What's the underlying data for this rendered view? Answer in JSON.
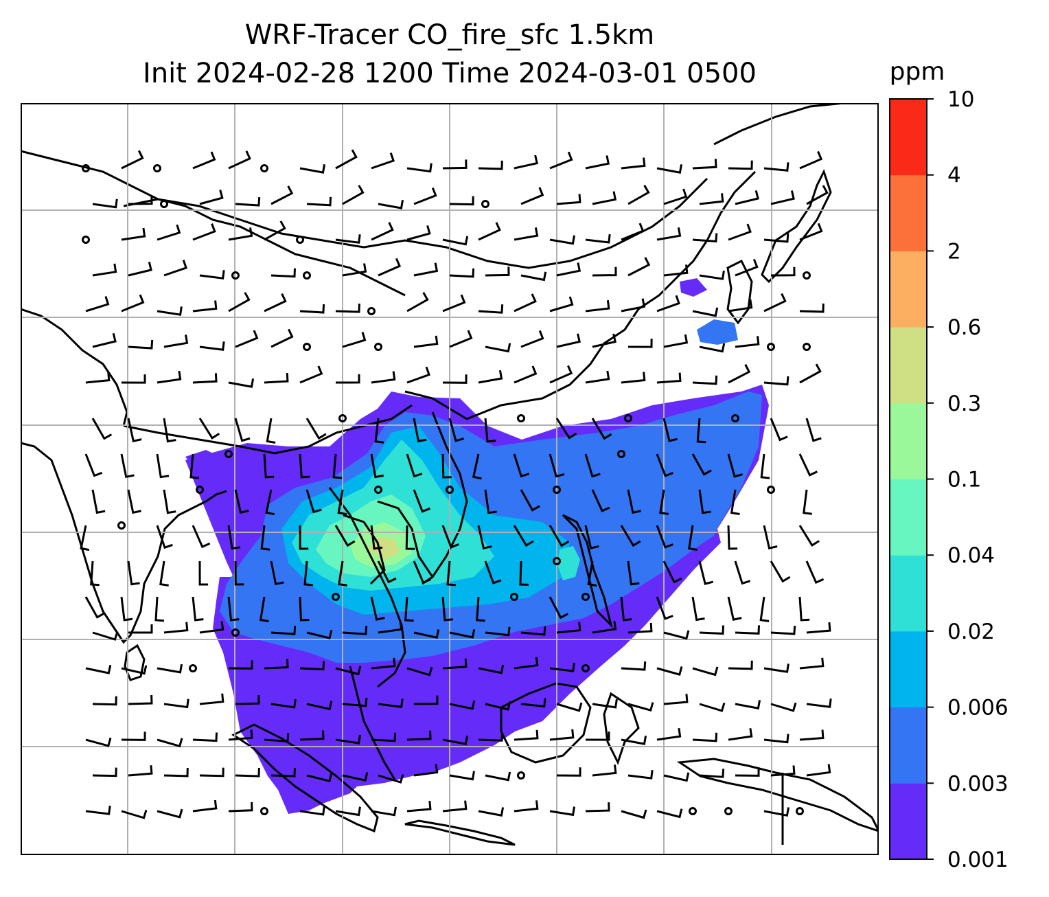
{
  "title": {
    "line1": "WRF-Tracer CO_fire_sfc 1.5km",
    "line2": "Init 2024-02-28 1200 Time 2024-03-01 0500"
  },
  "colorbar": {
    "unit": "ppm",
    "levels": [
      "0.001",
      "0.003",
      "0.006",
      "0.02",
      "0.04",
      "0.1",
      "0.3",
      "0.6",
      "2",
      "4",
      "10"
    ],
    "colors": [
      "#652cf9",
      "#3475f3",
      "#00b4ee",
      "#2fe0d6",
      "#68f6c0",
      "#9bf89a",
      "#cfe084",
      "#fdaf61",
      "#fc703a",
      "#fa2918"
    ]
  },
  "map": {
    "coastline_color": "#000000",
    "gridline_color": "#b0b0b0",
    "wind_barb_color": "#000000"
  }
}
